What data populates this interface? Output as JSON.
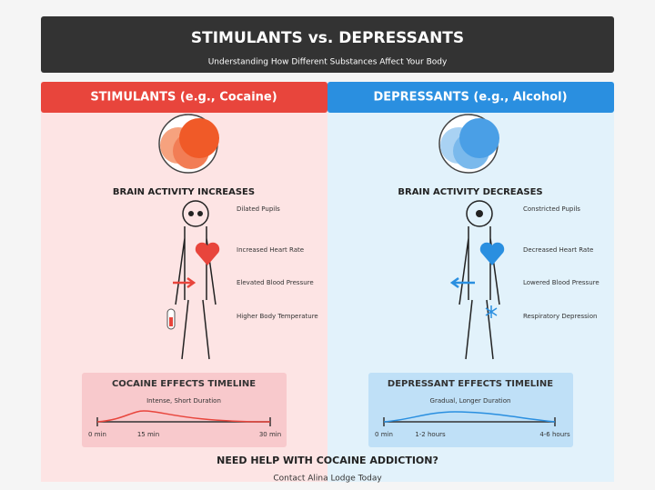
{
  "header": {
    "title": "STIMULANTS vs. DEPRESSANTS",
    "subtitle": "Understanding How Different Substances Affect Your Body"
  },
  "panels": [
    {
      "heading": "STIMULANTS (e.g., Cocaine)",
      "activity": "BRAIN ACTIVITY INCREASES",
      "effects": [
        "Dilated Pupils",
        "Increased Heart Rate",
        "Elevated Blood Pressure",
        "Higher Body Temperature"
      ],
      "timeline": {
        "title": "COCAINE EFFECTS TIMELINE",
        "subtitle": "Intense, Short Duration",
        "ticks": [
          "0 min",
          "15 min",
          "30 min"
        ]
      }
    },
    {
      "heading": "DEPRESSANTS (e.g., Alcohol)",
      "activity": "BRAIN ACTIVITY DECREASES",
      "effects": [
        "Constricted Pupils",
        "Decreased Heart Rate",
        "Lowered Blood Pressure",
        "Respiratory Depression"
      ],
      "timeline": {
        "title": "DEPRESSANT EFFECTS TIMELINE",
        "subtitle": "Gradual, Longer Duration",
        "ticks": [
          "0 min",
          "1-2 hours",
          "4-6 hours"
        ]
      }
    }
  ],
  "footer": {
    "title": "NEED HELP WITH COCAINE ADDICTION?",
    "contact": "Contact Alina Lodge Today"
  }
}
